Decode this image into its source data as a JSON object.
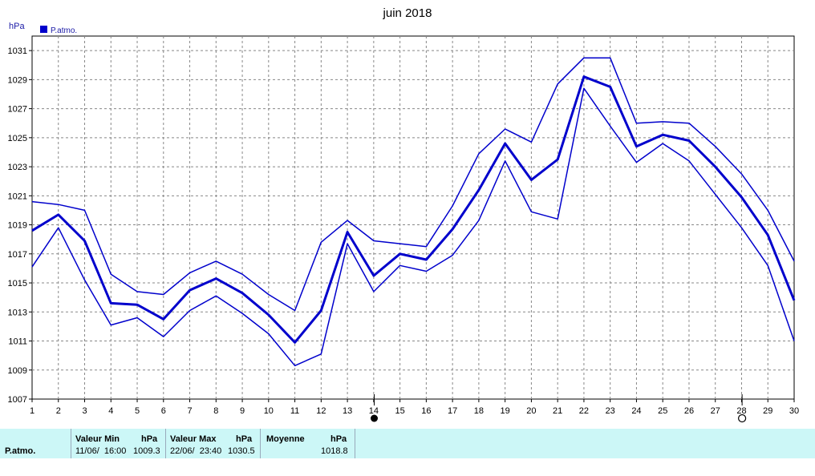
{
  "chart_data": {
    "type": "line",
    "title": "juin 2018",
    "ylabel": "hPa",
    "legend": [
      {
        "label": "P.atmo.",
        "color": "#0000cc"
      }
    ],
    "legend_placement": "top-left",
    "grid": true,
    "ylim": [
      1007,
      1032
    ],
    "yticks": [
      1007,
      1009,
      1011,
      1013,
      1015,
      1017,
      1019,
      1021,
      1023,
      1025,
      1027,
      1029,
      1031
    ],
    "x": [
      1,
      2,
      3,
      4,
      5,
      6,
      7,
      8,
      9,
      10,
      11,
      12,
      13,
      14,
      15,
      16,
      17,
      18,
      19,
      20,
      21,
      22,
      23,
      24,
      25,
      26,
      27,
      28,
      29,
      30
    ],
    "xlim": [
      1,
      30
    ],
    "series": [
      {
        "role": "max",
        "width": 1.5,
        "values": [
          1020.6,
          1020.4,
          1020.0,
          1015.6,
          1014.4,
          1014.2,
          1015.7,
          1016.5,
          1015.6,
          1014.2,
          1013.1,
          1017.8,
          1019.3,
          1017.9,
          1017.7,
          1017.5,
          1020.3,
          1023.9,
          1025.6,
          1024.7,
          1028.7,
          1030.5,
          1030.5,
          1026.0,
          1026.1,
          1026.0,
          1024.4,
          1022.5,
          1020.0,
          1016.5
        ]
      },
      {
        "role": "mean",
        "width": 3,
        "values": [
          1018.6,
          1019.7,
          1017.9,
          1013.6,
          1013.5,
          1012.5,
          1014.5,
          1015.3,
          1014.3,
          1012.8,
          1010.9,
          1013.1,
          1018.5,
          1015.5,
          1017.0,
          1016.6,
          1018.7,
          1021.4,
          1024.6,
          1022.1,
          1023.5,
          1029.2,
          1028.5,
          1024.4,
          1025.2,
          1024.8,
          1023.0,
          1020.9,
          1018.3,
          1013.8
        ]
      },
      {
        "role": "min",
        "width": 1.5,
        "values": [
          1016.1,
          1018.8,
          1015.2,
          1012.1,
          1012.6,
          1011.3,
          1013.1,
          1014.1,
          1012.9,
          1011.5,
          1009.3,
          1010.1,
          1017.7,
          1014.4,
          1016.2,
          1015.8,
          1016.9,
          1019.3,
          1023.4,
          1019.9,
          1019.4,
          1028.4,
          1025.8,
          1023.3,
          1024.6,
          1023.4,
          1021.1,
          1018.8,
          1016.2,
          1011.0
        ]
      }
    ],
    "moon_markers": [
      {
        "day": 14,
        "phase": "new-moon"
      },
      {
        "day": 28,
        "phase": "full-moon"
      }
    ]
  },
  "stats": {
    "row_label": "P.atmo.",
    "min_header": "Valeur Min",
    "min_unit": "hPa",
    "min_date": "11/06/  16:00",
    "min_value": "1009.3",
    "max_header": "Valeur Max",
    "max_unit": "hPa",
    "max_date": "22/06/  23:40",
    "max_value": "1030.5",
    "mean_header": "Moyenne",
    "mean_unit": "hPa",
    "mean_value": "1018.8"
  }
}
